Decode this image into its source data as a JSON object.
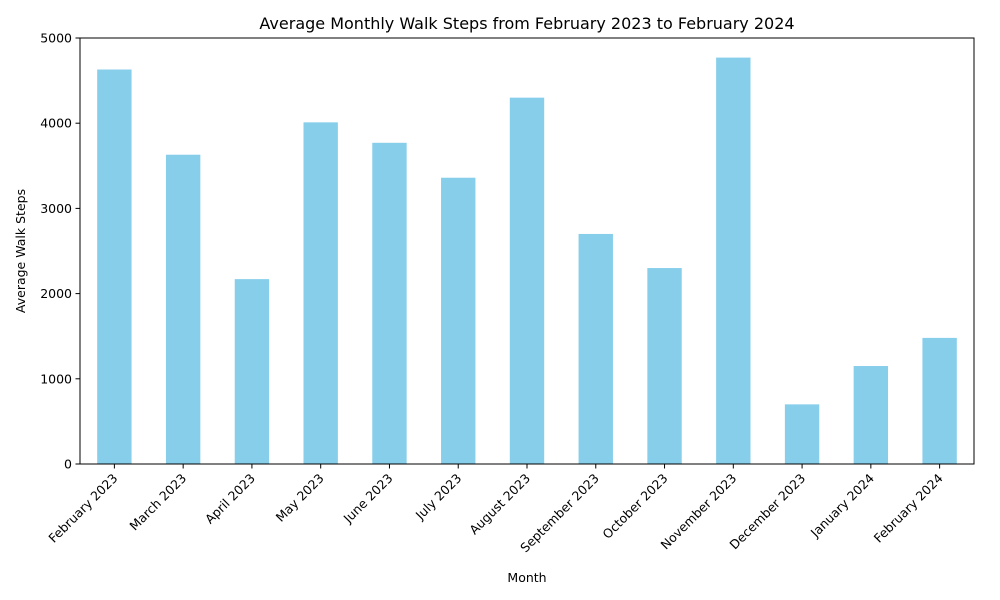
{
  "chart_data": {
    "type": "bar",
    "title": "Average Monthly Walk Steps from February 2023 to February 2024",
    "xlabel": "Month",
    "ylabel": "Average Walk Steps",
    "categories": [
      "February 2023",
      "March 2023",
      "April 2023",
      "May 2023",
      "June 2023",
      "July 2023",
      "August 2023",
      "September 2023",
      "October 2023",
      "November 2023",
      "December 2023",
      "January 2024",
      "February 2024"
    ],
    "values": [
      4630,
      3630,
      2170,
      4010,
      3770,
      3360,
      4300,
      2700,
      2300,
      4770,
      700,
      1150,
      1480
    ],
    "ylim": [
      0,
      5000
    ],
    "yticks": [
      0,
      1000,
      2000,
      3000,
      4000,
      5000
    ],
    "bar_color": "#87ceeb",
    "grid": false,
    "legend": "none"
  }
}
